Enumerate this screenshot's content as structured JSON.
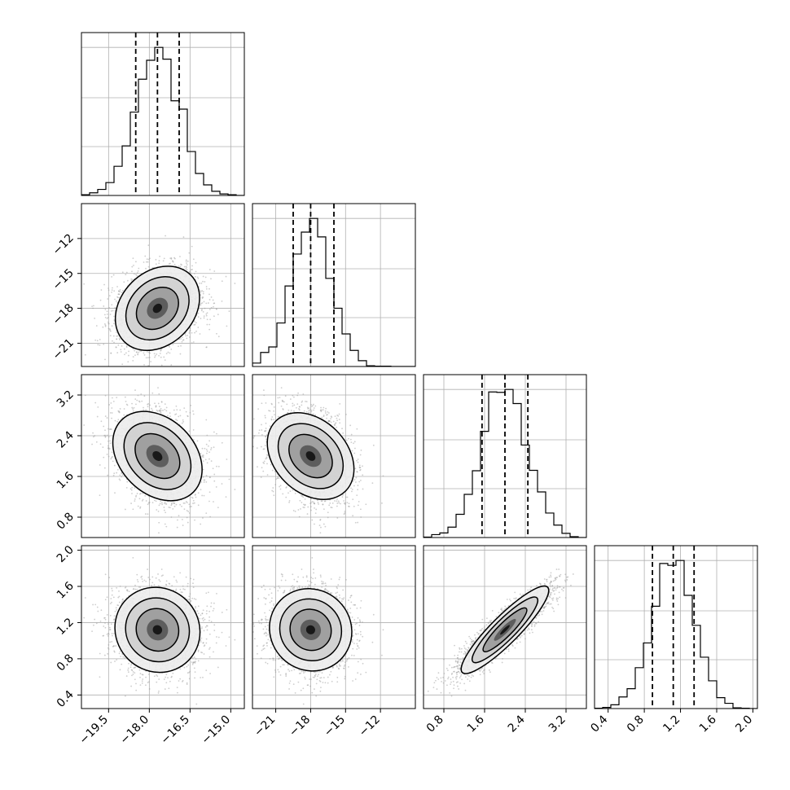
{
  "chart_data": {
    "type": "corner",
    "parameters": [
      {
        "range": [
          -20.5,
          -14.5
        ],
        "median": -17.7,
        "q16": -18.5,
        "q84": -16.9,
        "ticks": [
          "−19.5",
          "−18.0",
          "−16.5",
          "−15.0"
        ],
        "tick_values": [
          -19.5,
          -18.0,
          -16.5,
          -15.0
        ]
      },
      {
        "range": [
          -23.0,
          -9.0
        ],
        "median": -18.0,
        "q16": -19.5,
        "q84": -16.0,
        "ticks": [
          "−21",
          "−18",
          "−15",
          "−12"
        ],
        "tick_values": [
          -21,
          -18,
          -15,
          -12
        ]
      },
      {
        "range": [
          0.4,
          3.6
        ],
        "median": 2.0,
        "q16": 1.55,
        "q84": 2.45,
        "ticks": [
          "0.8",
          "1.6",
          "2.4",
          "3.2"
        ],
        "tick_values": [
          0.8,
          1.6,
          2.4,
          3.2
        ]
      },
      {
        "range": [
          0.25,
          2.05
        ],
        "median": 1.12,
        "q16": 0.89,
        "q84": 1.35,
        "ticks": [
          "0.4",
          "0.8",
          "1.2",
          "1.6",
          "2.0"
        ],
        "tick_values": [
          0.4,
          0.8,
          1.2,
          1.6,
          2.0
        ]
      }
    ],
    "correlations": [
      [
        1.0,
        0.25,
        -0.3,
        -0.05
      ],
      [
        0.25,
        1.0,
        -0.3,
        -0.05
      ],
      [
        -0.3,
        -0.3,
        1.0,
        0.9
      ],
      [
        -0.05,
        -0.05,
        0.9,
        1.0
      ]
    ],
    "histogram_bins": 20,
    "grid": true,
    "colors": {
      "line": "#000000",
      "scatter": "#9e9e9e",
      "grid": "#b0b0b0"
    }
  }
}
